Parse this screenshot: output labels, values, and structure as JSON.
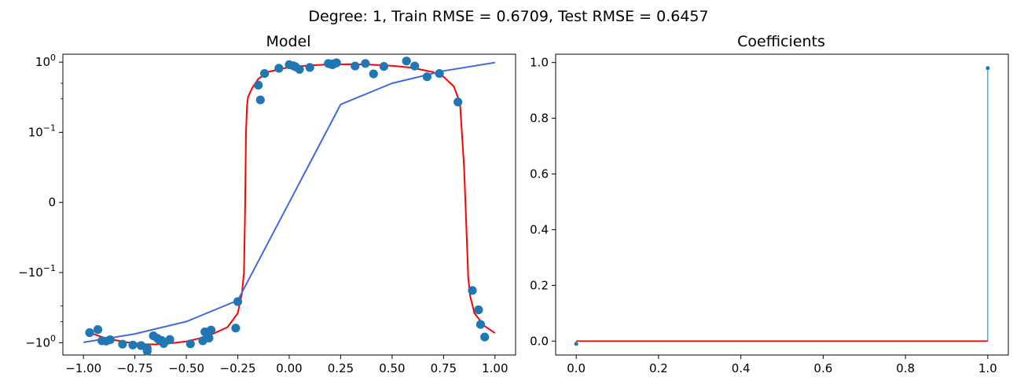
{
  "figure": {
    "suptitle": "Degree: 1, Train RMSE = 0.6709, Test RMSE = 0.6457"
  },
  "colors": {
    "scatter": "#1f77b4",
    "true_curve": "#ff0000",
    "model_fit": "#4169e1",
    "stem": "#1f77b4",
    "baseline": "#ff0000"
  },
  "chart_data": [
    {
      "type": "scatter",
      "title": "Model",
      "xlabel": "",
      "ylabel": "",
      "xlim": [
        -1.1,
        1.1
      ],
      "ylim": [
        -1.5,
        1.3
      ],
      "yscale": "symlog",
      "grid": false,
      "xticks": [
        -1.0,
        -0.75,
        -0.5,
        -0.25,
        0.0,
        0.25,
        0.5,
        0.75,
        1.0
      ],
      "xtick_labels": [
        "−1.00",
        "−0.75",
        "−0.50",
        "−0.25",
        "0.00",
        "0.25",
        "0.50",
        "0.75",
        "1.00"
      ],
      "yticks": [
        {
          "value": 1.0,
          "base": "10",
          "exp": "0",
          "sign": ""
        },
        {
          "value": 0.1,
          "base": "10",
          "exp": "−1",
          "sign": ""
        },
        {
          "value": 0.0,
          "base": "0",
          "exp": "",
          "sign": ""
        },
        {
          "value": -0.1,
          "base": "10",
          "exp": "−1",
          "sign": "−"
        },
        {
          "value": -1.0,
          "base": "10",
          "exp": "0",
          "sign": "−"
        }
      ],
      "scatter": {
        "x": [
          -0.97,
          -0.93,
          -0.91,
          -0.89,
          -0.87,
          -0.81,
          -0.76,
          -0.72,
          -0.69,
          -0.69,
          -0.66,
          -0.64,
          -0.63,
          -0.62,
          -0.61,
          -0.58,
          -0.48,
          -0.42,
          -0.41,
          -0.4,
          -0.39,
          -0.38,
          -0.26,
          -0.25,
          -0.15,
          -0.14,
          -0.12,
          -0.05,
          0.0,
          0.02,
          0.03,
          0.05,
          0.1,
          0.19,
          0.2,
          0.21,
          0.22,
          0.23,
          0.32,
          0.37,
          0.41,
          0.46,
          0.57,
          0.61,
          0.67,
          0.73,
          0.82,
          0.89,
          0.92,
          0.93,
          0.95
        ],
        "y": [
          -0.72,
          -0.65,
          -0.94,
          -0.95,
          -0.91,
          -1.05,
          -1.08,
          -1.1,
          -1.2,
          -1.32,
          -0.8,
          -0.87,
          -0.92,
          -0.93,
          -1.03,
          -0.9,
          -1.04,
          -0.94,
          -0.7,
          -0.75,
          -0.86,
          -0.66,
          -0.62,
          -0.26,
          0.47,
          0.29,
          0.69,
          0.82,
          0.92,
          0.89,
          0.86,
          0.79,
          0.84,
          0.96,
          0.94,
          0.92,
          0.96,
          0.98,
          0.88,
          0.96,
          0.68,
          0.87,
          1.04,
          0.88,
          0.62,
          0.69,
          0.27,
          -0.18,
          -0.34,
          -0.55,
          -0.83
        ]
      },
      "lines": [
        {
          "role": "true-function",
          "x": [
            -0.98,
            -0.9,
            -0.8,
            -0.7,
            -0.65,
            -0.6,
            -0.5,
            -0.4,
            -0.3,
            -0.25,
            -0.23,
            -0.22,
            -0.215,
            -0.21,
            -0.205,
            -0.2,
            -0.18,
            -0.15,
            -0.1,
            0.0,
            0.1,
            0.2,
            0.3,
            0.4,
            0.5,
            0.6,
            0.7,
            0.75,
            0.8,
            0.83,
            0.85,
            0.86,
            0.87,
            0.88,
            0.9,
            0.95,
            1.0
          ],
          "y": [
            -0.7,
            -0.85,
            -0.98,
            -1.05,
            -1.06,
            -1.04,
            -0.96,
            -0.82,
            -0.6,
            -0.38,
            -0.2,
            -0.1,
            -0.02,
            0.1,
            0.24,
            0.32,
            0.43,
            0.58,
            0.73,
            0.85,
            0.9,
            0.93,
            0.935,
            0.92,
            0.89,
            0.83,
            0.72,
            0.62,
            0.45,
            0.26,
            0.05,
            -0.03,
            -0.12,
            -0.22,
            -0.38,
            -0.58,
            -0.73
          ]
        },
        {
          "role": "model-fit",
          "x": [
            -1.0,
            -0.75,
            -0.5,
            -0.25,
            0.0,
            0.25,
            0.5,
            0.75,
            1.0
          ],
          "y": [
            -0.99,
            -0.75,
            -0.5,
            -0.25,
            0.0,
            0.25,
            0.5,
            0.75,
            0.99
          ]
        }
      ]
    },
    {
      "type": "stem",
      "title": "Coefficients",
      "xlabel": "",
      "ylabel": "",
      "xlim": [
        -0.05,
        1.05
      ],
      "ylim": [
        -0.05,
        1.03
      ],
      "grid": false,
      "xticks": [
        0.0,
        0.2,
        0.4,
        0.6,
        0.8,
        1.0
      ],
      "xtick_labels": [
        "0.0",
        "0.2",
        "0.4",
        "0.6",
        "0.8",
        "1.0"
      ],
      "yticks": [
        0.0,
        0.2,
        0.4,
        0.6,
        0.8,
        1.0
      ],
      "ytick_labels": [
        "0.0",
        "0.2",
        "0.4",
        "0.6",
        "0.8",
        "1.0"
      ],
      "x": [
        0,
        1
      ],
      "values": [
        -0.01,
        0.98
      ],
      "baseline": 0.0
    }
  ]
}
